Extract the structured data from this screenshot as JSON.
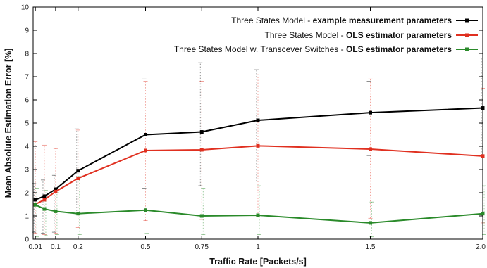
{
  "chart_data": {
    "type": "line",
    "title": "",
    "xlabel": "Traffic Rate [Packets/s]",
    "ylabel": "Mean Absolute Estimation Error [%]",
    "x": [
      0.01,
      0.05,
      0.1,
      0.2,
      0.5,
      0.75,
      1,
      1.5,
      2.0
    ],
    "x_tick_labels": [
      "0.01",
      "0.1",
      "0.2",
      "0.5",
      "0.75",
      "1",
      "1.5",
      "2.0"
    ],
    "x_tick_values": [
      0.01,
      0.1,
      0.2,
      0.5,
      0.75,
      1,
      1.5,
      2.0
    ],
    "y_tick_labels": [
      "0",
      "1",
      "2",
      "3",
      "4",
      "5",
      "6",
      "7",
      "8",
      "9",
      "10"
    ],
    "xlim": [
      0,
      2.0
    ],
    "ylim": [
      0,
      10
    ],
    "grid": "vertical-dotted-errorbars",
    "legend_position": "top-right",
    "series": [
      {
        "name_regular": "Three States Model - ",
        "name_bold": "example measurement parameters",
        "color": "#000000",
        "values": [
          1.7,
          1.85,
          2.15,
          2.95,
          4.5,
          4.62,
          5.12,
          5.45,
          5.65
        ],
        "err_low": [
          0.3,
          0.25,
          0.3,
          1.1,
          2.2,
          2.3,
          2.5,
          3.6,
          3.5
        ],
        "err_high": [
          2.4,
          2.55,
          2.75,
          4.75,
          6.9,
          7.6,
          7.3,
          6.8,
          7.8
        ]
      },
      {
        "name_regular": "Three States Model - ",
        "name_bold": "OLS estimator parameters",
        "color": "#e03020",
        "values": [
          1.5,
          1.7,
          2.05,
          2.62,
          3.82,
          3.85,
          4.02,
          3.88,
          3.58
        ],
        "err_low": [
          0.25,
          0.2,
          0.25,
          0.5,
          0.8,
          0.85,
          1.0,
          0.9,
          0.7
        ],
        "err_high": [
          4.2,
          4.05,
          3.9,
          4.7,
          6.8,
          6.8,
          7.2,
          6.9,
          6.5
        ]
      },
      {
        "name_regular": "Three States Model w. Transcever Switches - ",
        "name_bold": "OLS estimator parameters",
        "color": "#2a8a2a",
        "values": [
          1.48,
          1.3,
          1.2,
          1.1,
          1.25,
          1.0,
          1.03,
          0.7,
          1.1
        ],
        "err_low": [
          0.1,
          0.15,
          0.2,
          0.2,
          0.25,
          0.2,
          0.2,
          0.1,
          0.2
        ],
        "err_high": [
          2.2,
          2.1,
          2.0,
          2.7,
          2.5,
          2.2,
          2.3,
          1.6,
          2.3
        ]
      }
    ]
  }
}
